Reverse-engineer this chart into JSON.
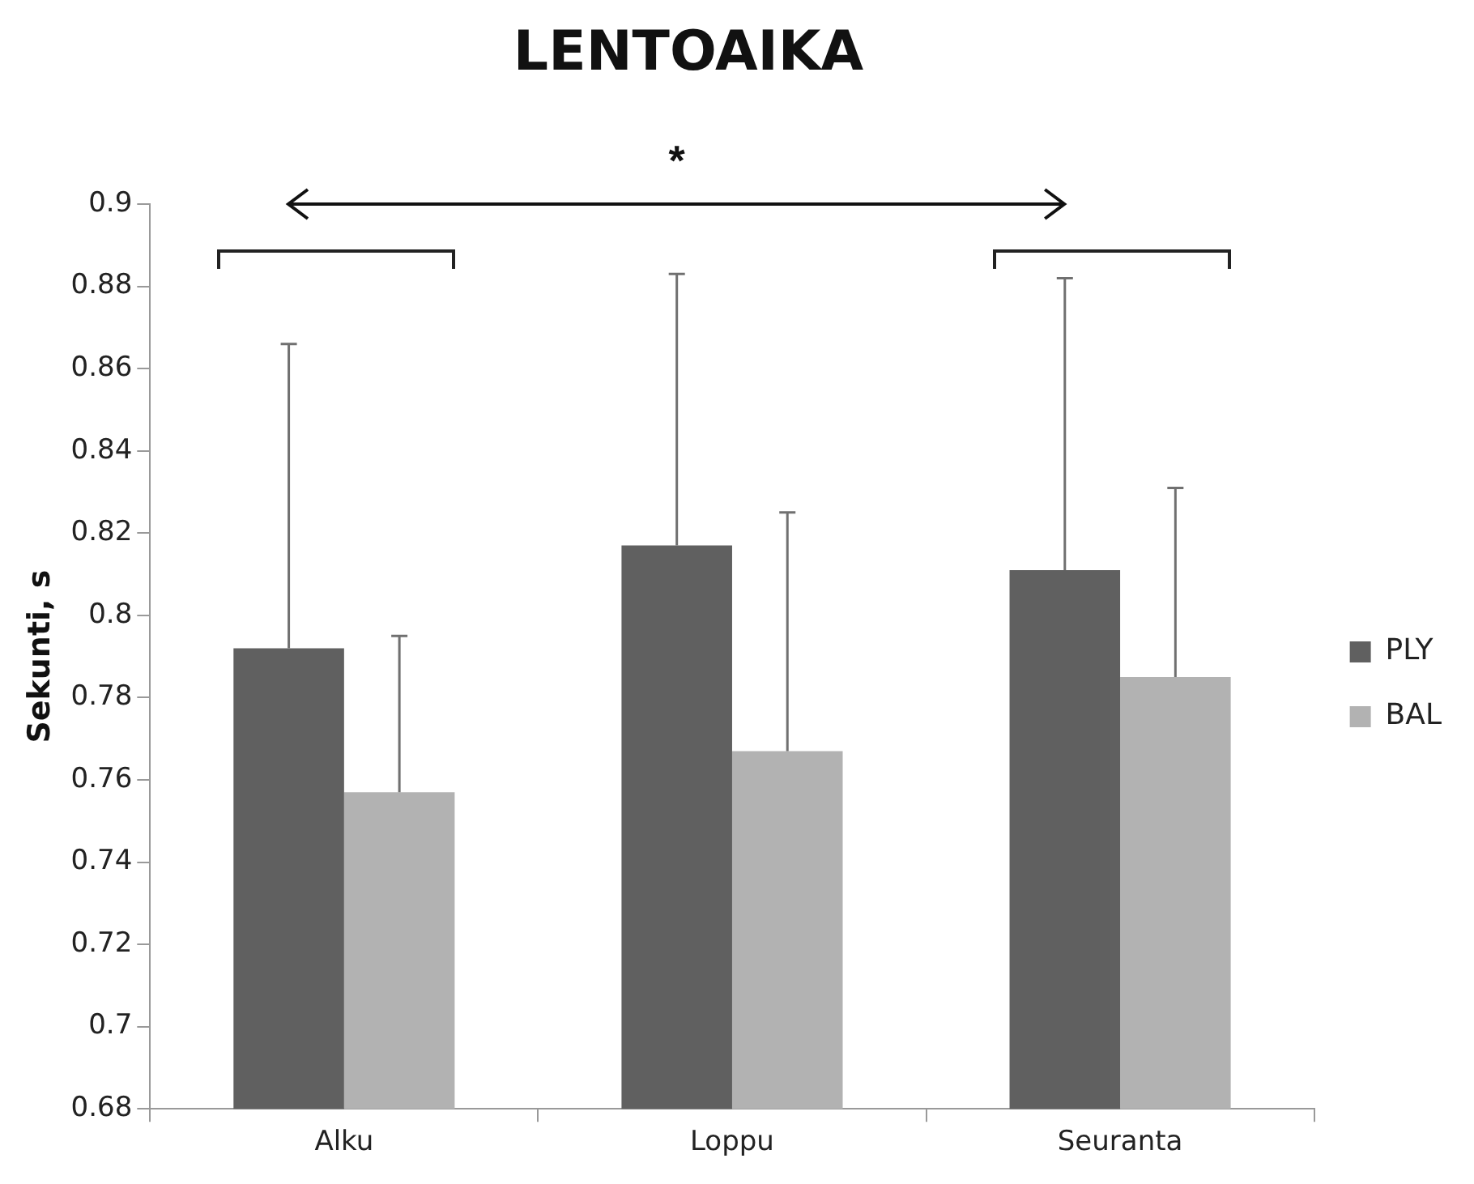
{
  "chart_data": {
    "type": "bar",
    "title": "LENTOAIKA",
    "ylabel": "Sekunti, s",
    "categories": [
      "Alku",
      "Loppu",
      "Seuranta"
    ],
    "series": [
      {
        "name": "PLY",
        "color": "#606060",
        "values": [
          0.792,
          0.817,
          0.811
        ],
        "errors": [
          [
            0.792,
            0.866
          ],
          [
            0.817,
            0.883
          ],
          [
            0.811,
            0.882
          ]
        ]
      },
      {
        "name": "BAL",
        "color": "#b2b2b2",
        "values": [
          0.757,
          0.767,
          0.785
        ],
        "errors": [
          [
            0.757,
            0.795
          ],
          [
            0.767,
            0.825
          ],
          [
            0.785,
            0.831
          ]
        ]
      }
    ],
    "ylim": [
      0.68,
      0.9
    ],
    "yticks": [
      0.68,
      0.7,
      0.72,
      0.74,
      0.76,
      0.78,
      0.8,
      0.82,
      0.84,
      0.86,
      0.88,
      0.9
    ],
    "grid": false,
    "legend": "right",
    "annotations": [
      "*"
    ]
  }
}
